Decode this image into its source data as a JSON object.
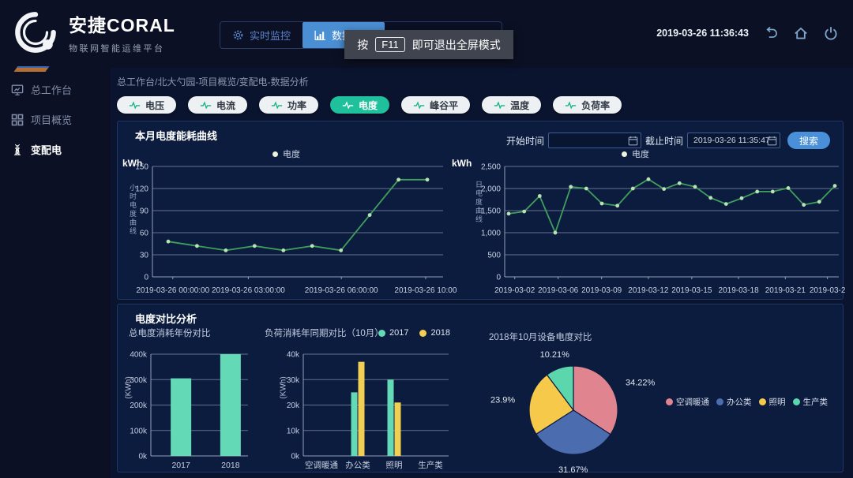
{
  "header": {
    "brand": "安捷CORAL",
    "subtitle": "物联网智能运维平台",
    "nav": [
      {
        "label": "实时监控",
        "icon": "gear-icon",
        "active": false
      },
      {
        "label": "数据分析",
        "icon": "bar-chart-icon",
        "active": true
      },
      {
        "label": "",
        "icon": "monitor-icon",
        "active": false
      }
    ],
    "tooltip": {
      "prefix": "按",
      "key": "F11",
      "suffix": "即可退出全屏模式"
    },
    "timestamp": "2019-03-26 11:36:43",
    "action_icons": [
      "back-icon",
      "home-icon",
      "power-icon"
    ]
  },
  "sidebar": {
    "items": [
      {
        "label": "总工作台",
        "icon": "monitor-icon",
        "active": false
      },
      {
        "label": "项目概览",
        "icon": "grid-icon",
        "active": false
      },
      {
        "label": "变配电",
        "icon": "tower-icon",
        "active": true
      }
    ]
  },
  "breadcrumb": "总工作台/北大勺园-项目概览/变配电-数据分析",
  "filters": {
    "items": [
      {
        "label": "电压",
        "active": false
      },
      {
        "label": "电流",
        "active": false
      },
      {
        "label": "功率",
        "active": false
      },
      {
        "label": "电度",
        "active": true
      },
      {
        "label": "峰谷平",
        "active": false
      },
      {
        "label": "温度",
        "active": false
      },
      {
        "label": "负荷率",
        "active": false
      }
    ]
  },
  "top_panel": {
    "left_title": "本月电度能耗曲线",
    "controls": {
      "start_label": "开始时间",
      "start_value": "",
      "end_label": "截止时间",
      "end_value": "2019-03-26 11:35:47",
      "search_label": "搜索"
    }
  },
  "bottom_panel": {
    "title": "电度对比分析"
  },
  "colors": {
    "accent_blue": "#4a90d8",
    "active_green": "#1fc09c",
    "line_green": "#3f9f5b",
    "bar_teal": "#63d9b5",
    "bar_yellow": "#f2ce53"
  },
  "chart_data": [
    {
      "type": "line",
      "title": "本月电度能耗曲线",
      "legend": "电度",
      "legend_color": "#eff3dc",
      "unit": "kWh",
      "ylabel": "小时电度曲线",
      "values": [
        48,
        42,
        36,
        42,
        36,
        42,
        36,
        84,
        132,
        132
      ],
      "ymax": 150,
      "yticks": [
        "0",
        "30",
        "60",
        "90",
        "120",
        "150"
      ],
      "xlabels": [
        {
          "f": 0.07,
          "text": "2019-03-26 00:00:00"
        },
        {
          "f": 0.33,
          "text": "2019-03-26 03:00:00"
        },
        {
          "f": 0.65,
          "text": "2019-03-26 06:00:00"
        },
        {
          "f": 0.94,
          "text": "2019-03-26 10:00"
        }
      ],
      "color": "#3f9f5b",
      "dot_color": "#b9e3b4"
    },
    {
      "type": "line",
      "title": "",
      "legend": "电度",
      "legend_color": "#eff3dc",
      "unit": "kWh",
      "ylabel": "日电度曲线",
      "values": [
        1430,
        1480,
        1830,
        1000,
        2040,
        2000,
        1660,
        1610,
        2000,
        2210,
        1990,
        2120,
        2040,
        1790,
        1650,
        1780,
        1930,
        1930,
        2010,
        1630,
        1700,
        2060
      ],
      "ymax": 2500,
      "yticks": [
        "0",
        "500",
        "1,000",
        "1,500",
        "2,000",
        "2,500"
      ],
      "xlabels": [
        {
          "f": 0.03,
          "text": "2019-03-02"
        },
        {
          "f": 0.16,
          "text": "2019-03-06"
        },
        {
          "f": 0.29,
          "text": "2019-03-09"
        },
        {
          "f": 0.43,
          "text": "2019-03-12"
        },
        {
          "f": 0.56,
          "text": "2019-03-15"
        },
        {
          "f": 0.7,
          "text": "2019-03-18"
        },
        {
          "f": 0.84,
          "text": "2019-03-21"
        },
        {
          "f": 0.966,
          "text": "2019-03-2"
        }
      ],
      "color": "#3f9f5b",
      "dot_color": "#b9e3b4"
    },
    {
      "type": "bar",
      "title": "总电度消耗年份对比",
      "ylabel": "(KWh)",
      "categories": [
        "2017",
        "2018"
      ],
      "values": [
        305,
        400
      ],
      "value_unit": "k",
      "ymax": 400,
      "yticks": [
        "0k",
        "100k",
        "200k",
        "300k",
        "400k"
      ],
      "color": "#63d9b5"
    },
    {
      "type": "grouped-bar",
      "title": "负荷消耗年同期对比（10月）",
      "ylabel": "(KWh)",
      "categories": [
        "空调暖通",
        "办公类",
        "照明",
        "生产类"
      ],
      "series": [
        {
          "name": "2017",
          "color": "#63d9b5",
          "values": [
            0,
            25,
            30,
            0
          ]
        },
        {
          "name": "2018",
          "color": "#f2ce53",
          "values": [
            0,
            37,
            21,
            0
          ]
        }
      ],
      "value_unit": "k",
      "ymax": 40,
      "yticks": [
        "0k",
        "10k",
        "20k",
        "30k",
        "40k"
      ]
    },
    {
      "type": "pie",
      "title": "2018年10月设备电度对比",
      "slices": [
        {
          "label": "空调暖通",
          "pct": 34.22,
          "color": "#e0848f"
        },
        {
          "label": "办公类",
          "pct": 31.67,
          "color": "#4c6cb0"
        },
        {
          "label": "照明",
          "pct": 23.9,
          "color": "#f6c94b"
        },
        {
          "label": "生产类",
          "pct": 10.21,
          "color": "#5bd6ad"
        }
      ]
    }
  ]
}
